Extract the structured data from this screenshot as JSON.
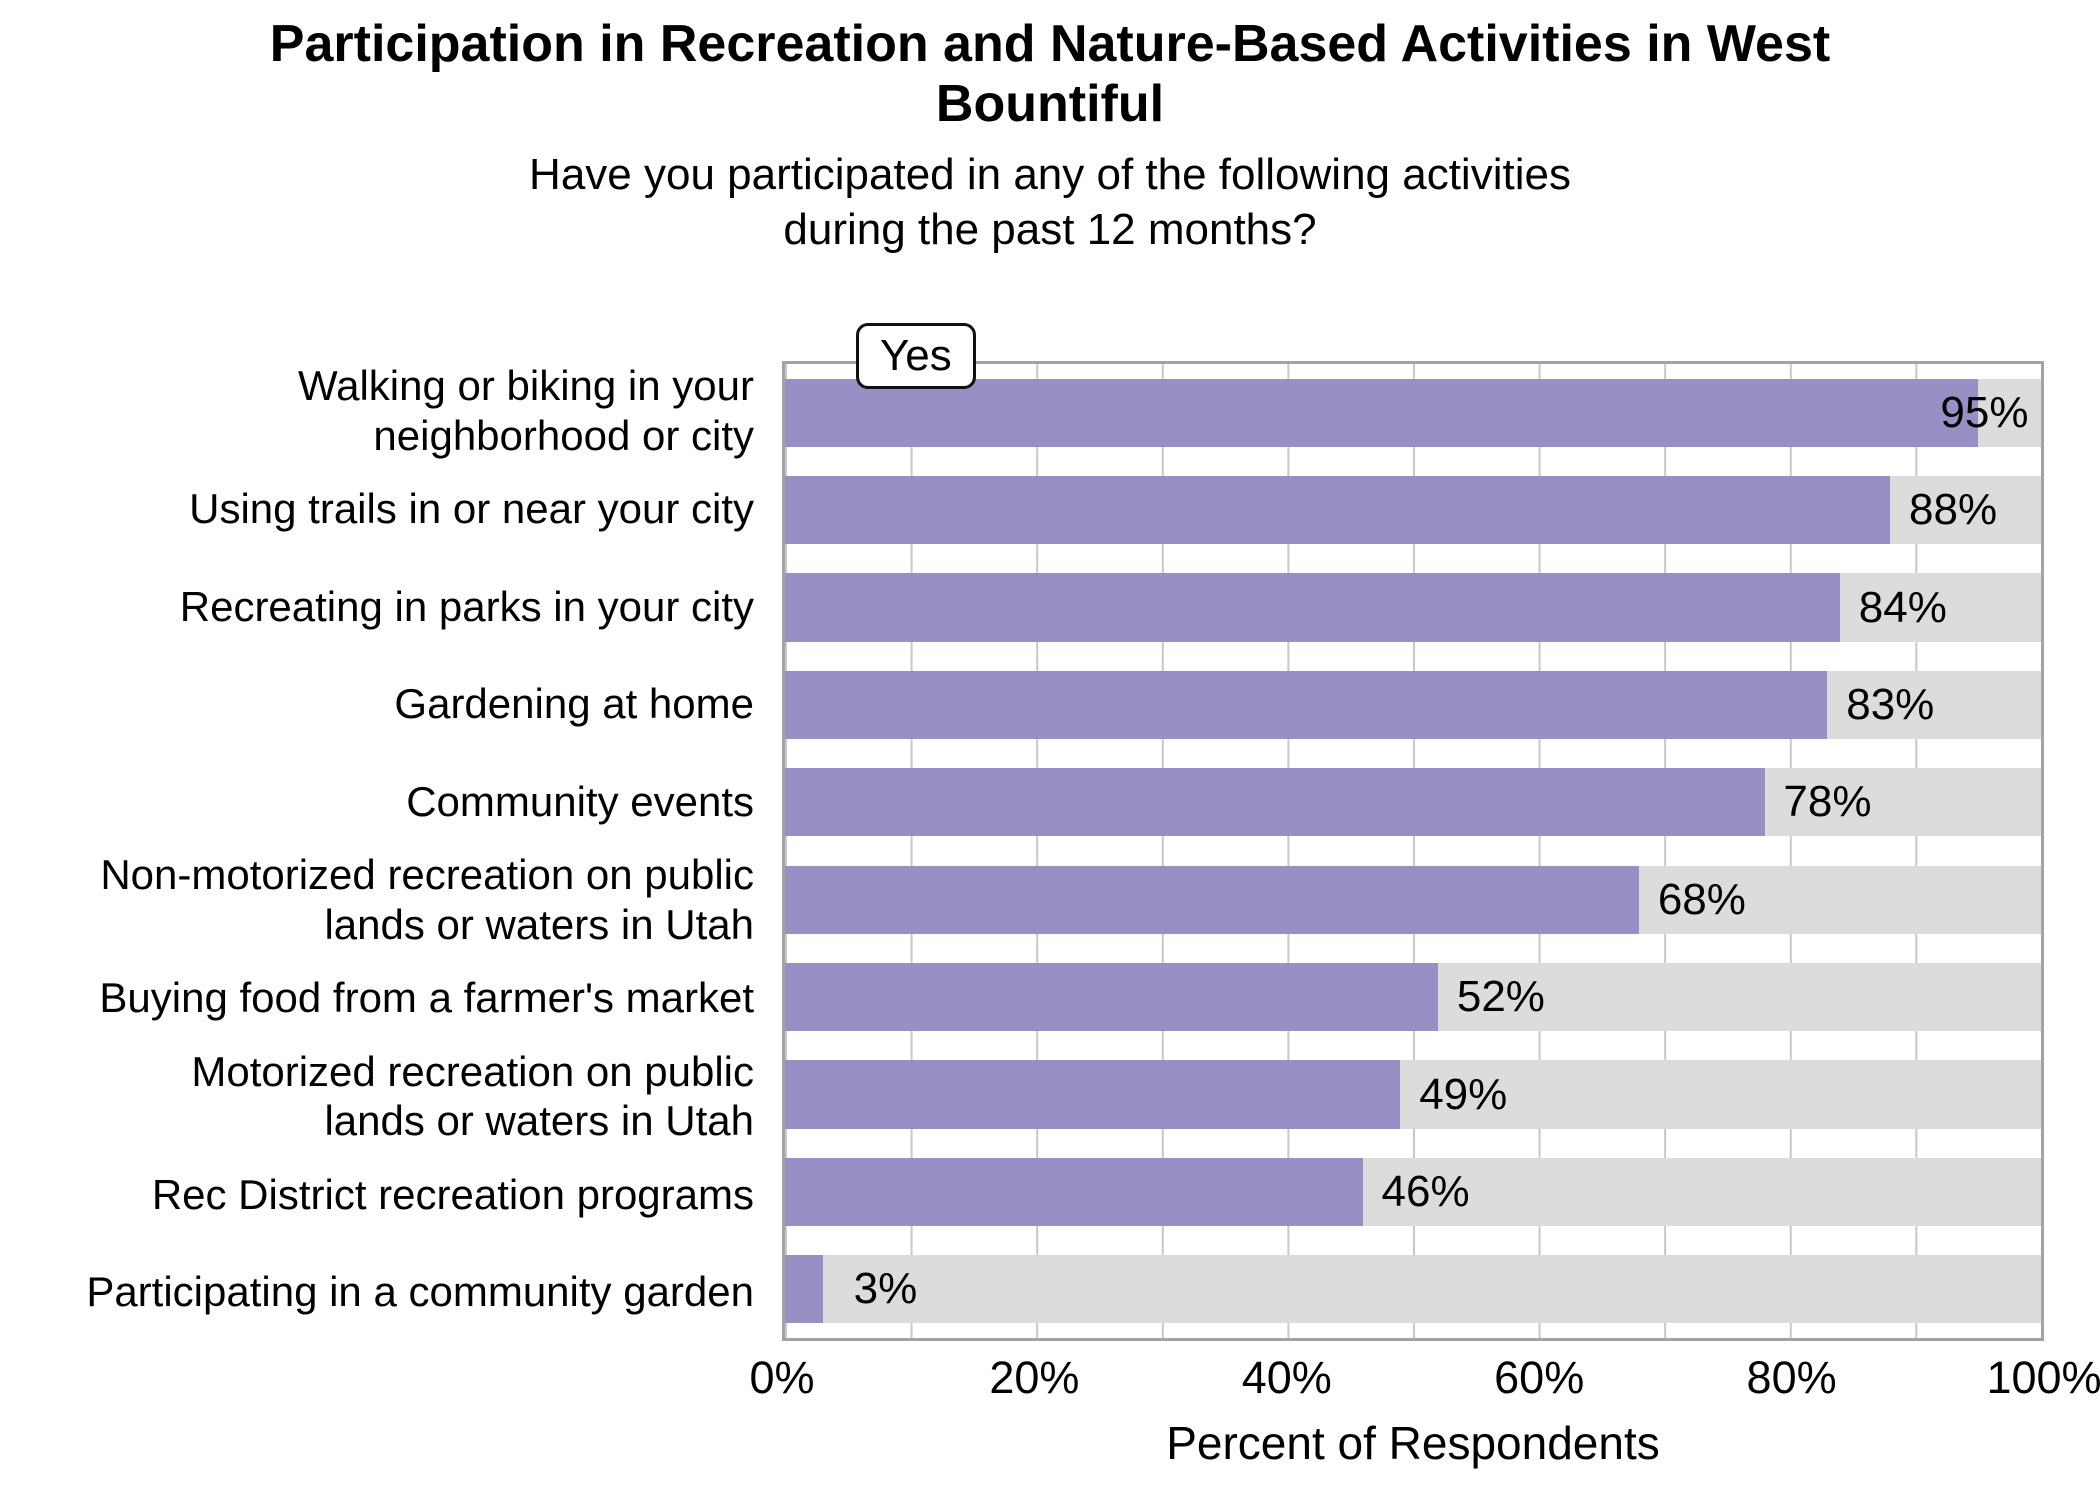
{
  "title": "Participation in Recreation and Nature-Based Activities in West\nBountiful",
  "subtitle": "Have you participated in any of the following activities\nduring the past 12 months?",
  "legend": {
    "label": "Yes"
  },
  "x_axis": {
    "label": "Percent of Respondents",
    "ticks": [
      "0%",
      "20%",
      "40%",
      "60%",
      "80%",
      "100%"
    ],
    "tick_positions": [
      0,
      20,
      40,
      60,
      80,
      100
    ]
  },
  "chart_data": {
    "type": "bar",
    "orientation": "horizontal",
    "title": "Participation in Recreation and Nature-Based Activities in West Bountiful",
    "subtitle": "Have you participated in any of the following activities during the past 12 months?",
    "series_name": "Yes",
    "categories": [
      "Walking or biking in your\nneighborhood or city",
      "Using trails in or near your city",
      "Recreating in parks in your city",
      "Gardening at home",
      "Community events",
      "Non-motorized recreation on public\nlands or waters in Utah",
      "Buying food from a farmer's market",
      "Motorized recreation on public\nlands or waters in Utah",
      "Rec District recreation programs",
      "Participating in a community garden"
    ],
    "values": [
      95,
      88,
      84,
      83,
      78,
      68,
      52,
      49,
      46,
      3
    ],
    "value_labels": [
      "95%",
      "88%",
      "84%",
      "83%",
      "78%",
      "68%",
      "52%",
      "49%",
      "46%",
      "3%"
    ],
    "xlabel": "Percent of Respondents",
    "xlim": [
      0,
      100
    ],
    "grid_interval": 10,
    "legend_position": "top-left-inside",
    "colors": {
      "bar": "#9690c4",
      "track": "#dcdcdc",
      "gridline": "#c8c8c8",
      "plot_border": "#a3a3a3",
      "text": "#000000",
      "background": "#ffffff"
    }
  }
}
